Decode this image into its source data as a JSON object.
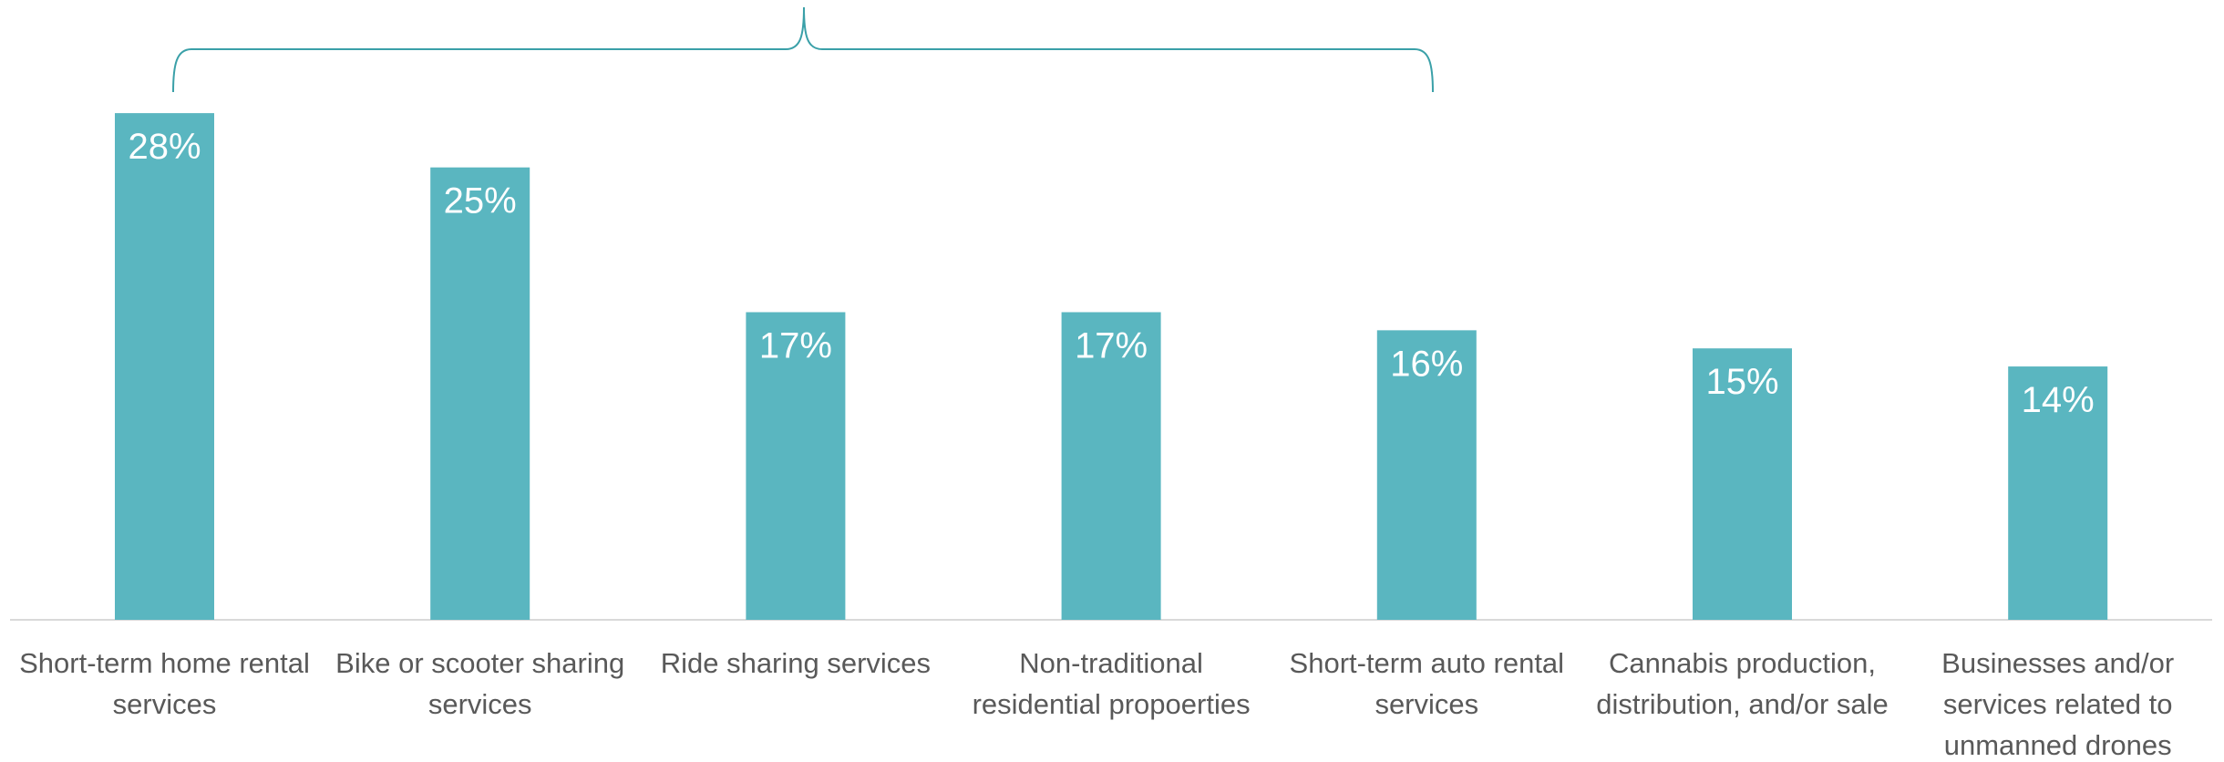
{
  "chart_data": {
    "type": "bar",
    "categories": [
      "Short-term home rental services",
      "Bike or scooter sharing services",
      "Ride sharing services",
      "Non-traditional residential propoerties",
      "Short-term auto rental services",
      "Cannabis production, distribution, and/or sale",
      "Businesses and/or services related to unmanned drones"
    ],
    "values": [
      28,
      25,
      17,
      17,
      16,
      15,
      14
    ],
    "value_labels": [
      "28%",
      "25%",
      "17%",
      "17%",
      "16%",
      "15%",
      "14%"
    ],
    "color": "#5ab6c0",
    "ylim": [
      0,
      34
    ]
  }
}
